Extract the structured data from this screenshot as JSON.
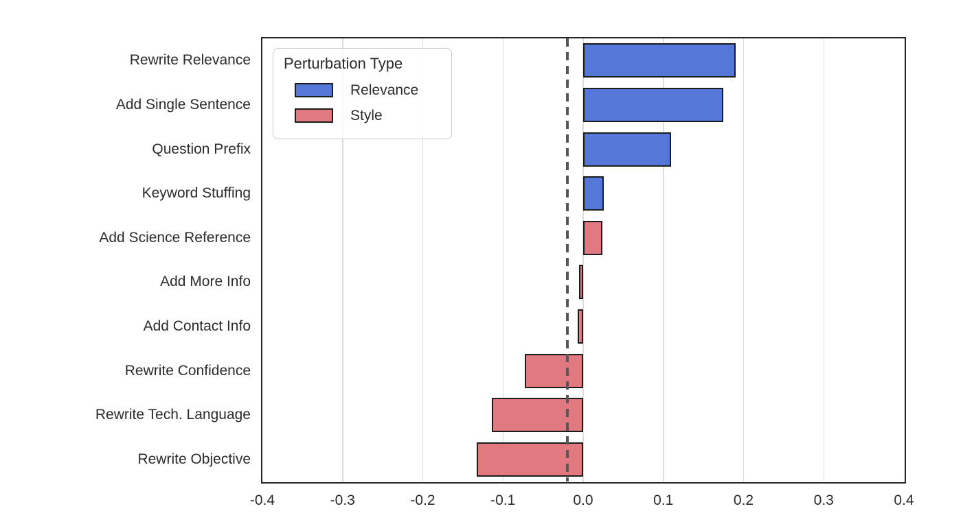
{
  "chart_data": {
    "type": "bar",
    "orientation": "horizontal",
    "title": "",
    "xlabel": "",
    "ylabel": "",
    "xlim": [
      -0.4,
      0.4
    ],
    "grid": "vertical",
    "reference_line_x": -0.02,
    "xticks": {
      "values": [
        -0.4,
        -0.3,
        -0.2,
        -0.1,
        0.0,
        0.1,
        0.2,
        0.3,
        0.4
      ],
      "labels": [
        "-0.4",
        "-0.3",
        "-0.2",
        "-0.1",
        "0.0",
        "0.1",
        "0.2",
        "0.3",
        "0.4"
      ]
    },
    "categories": [
      "Rewrite Relevance",
      "Add Single Sentence",
      "Question Prefix",
      "Keyword Stuffing",
      "Add Science Reference",
      "Add More Info",
      "Add Contact Info",
      "Rewrite Confidence",
      "Rewrite Tech. Language",
      "Rewrite Objective"
    ],
    "bars": [
      {
        "label": "Rewrite Relevance",
        "value": 0.19,
        "type": "Relevance"
      },
      {
        "label": "Add Single Sentence",
        "value": 0.175,
        "type": "Relevance"
      },
      {
        "label": "Question Prefix",
        "value": 0.11,
        "type": "Relevance"
      },
      {
        "label": "Keyword Stuffing",
        "value": 0.026,
        "type": "Relevance"
      },
      {
        "label": "Add Science Reference",
        "value": 0.024,
        "type": "Style"
      },
      {
        "label": "Add More Info",
        "value": -0.005,
        "type": "Style"
      },
      {
        "label": "Add Contact Info",
        "value": -0.007,
        "type": "Style"
      },
      {
        "label": "Rewrite Confidence",
        "value": -0.073,
        "type": "Style"
      },
      {
        "label": "Rewrite Tech. Language",
        "value": -0.114,
        "type": "Style"
      },
      {
        "label": "Rewrite Objective",
        "value": -0.133,
        "type": "Style"
      }
    ],
    "legend": {
      "title": "Perturbation Type",
      "position": "upper-left",
      "entries": [
        {
          "label": "Relevance",
          "color": "#5578D8"
        },
        {
          "label": "Style",
          "color": "#E17A80"
        }
      ]
    },
    "colors": {
      "Relevance": "#5578D8",
      "Style": "#E17A80",
      "bar_border": "#1c1c1c",
      "gridline": "#dcdcdc",
      "reference_line": "#575757",
      "spine": "#262626",
      "text": "#2b2b2b"
    }
  }
}
